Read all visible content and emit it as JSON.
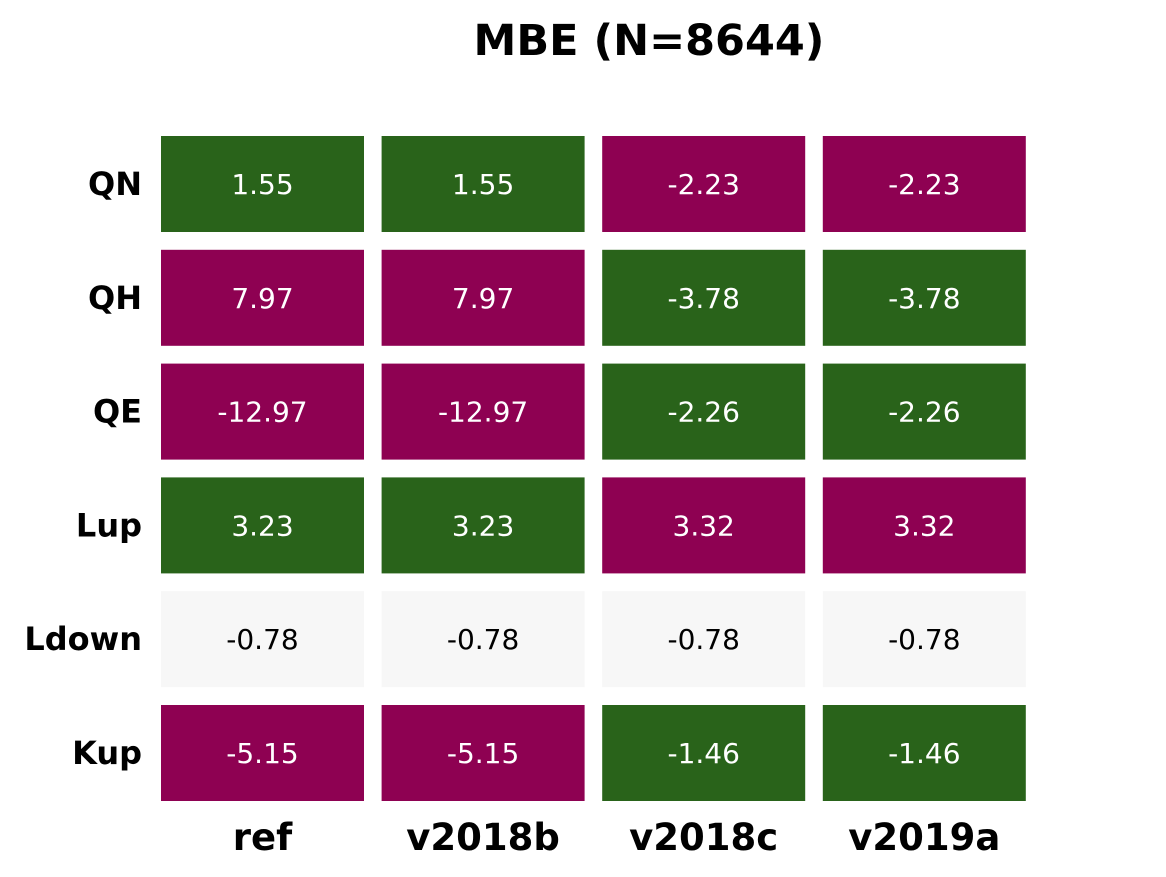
{
  "chart_data": {
    "type": "heatmap",
    "title": "MBE (N=8644)",
    "xlabel": "",
    "ylabel": "",
    "rows": [
      "QN",
      "QH",
      "QE",
      "Lup",
      "Ldown",
      "Kup"
    ],
    "columns": [
      "ref",
      "v2018b",
      "v2018c",
      "v2019a"
    ],
    "values": [
      [
        1.55,
        1.55,
        -2.23,
        -2.23
      ],
      [
        7.97,
        7.97,
        -3.78,
        -3.78
      ],
      [
        -12.97,
        -12.97,
        -2.26,
        -2.26
      ],
      [
        3.23,
        3.23,
        3.32,
        3.32
      ],
      [
        -0.78,
        -0.78,
        -0.78,
        -0.78
      ],
      [
        -5.15,
        -5.15,
        -1.46,
        -1.46
      ]
    ],
    "value_labels": [
      [
        "1.55",
        "1.55",
        "-2.23",
        "-2.23"
      ],
      [
        "7.97",
        "7.97",
        "-3.78",
        "-3.78"
      ],
      [
        "-12.97",
        "-12.97",
        "-2.26",
        "-2.26"
      ],
      [
        "3.23",
        "3.23",
        "3.32",
        "3.32"
      ],
      [
        "-0.78",
        "-0.78",
        "-0.78",
        "-0.78"
      ],
      [
        "-5.15",
        "-5.15",
        "-1.46",
        "-1.46"
      ]
    ],
    "cell_status": [
      [
        "better",
        "better",
        "worse",
        "worse"
      ],
      [
        "worse",
        "worse",
        "better",
        "better"
      ],
      [
        "worse",
        "worse",
        "better",
        "better"
      ],
      [
        "better",
        "better",
        "worse",
        "worse"
      ],
      [
        "neutral",
        "neutral",
        "neutral",
        "neutral"
      ],
      [
        "worse",
        "worse",
        "better",
        "better"
      ]
    ],
    "colors": {
      "better": "#29631a",
      "worse": "#8e0152",
      "neutral": "#f7f7f7",
      "text_on_dark": "#ffffff",
      "text_on_light": "#000000"
    },
    "grid": false,
    "legend": "none"
  }
}
